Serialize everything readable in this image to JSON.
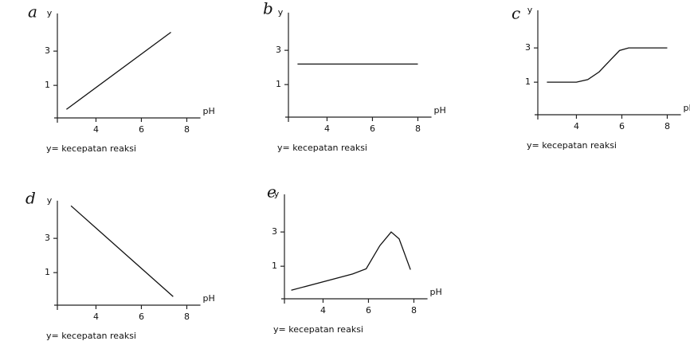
{
  "chart_data": [
    {
      "type": "line",
      "label": "a",
      "ylabel": "y",
      "xlabel": "pH",
      "caption": "y= kecepatan reaksi",
      "x": [
        2.7,
        7.3
      ],
      "values": [
        -0.4,
        4.1
      ],
      "color": "#111111",
      "xlim": [
        2.3,
        8.6
      ],
      "ylim": [
        -0.9,
        5.2
      ],
      "xticks": [
        4,
        6,
        8
      ],
      "yticks": [
        1,
        3
      ]
    },
    {
      "type": "line",
      "label": "b",
      "ylabel": "y",
      "xlabel": "pH",
      "caption": "y= kecepatan reaksi",
      "x": [
        2.7,
        8.0
      ],
      "values": [
        2.2,
        2.2
      ],
      "color": "#111111",
      "xlim": [
        2.3,
        8.6
      ],
      "ylim": [
        -0.9,
        5.2
      ],
      "xticks": [
        4,
        6,
        8
      ],
      "yticks": [
        1,
        3
      ]
    },
    {
      "type": "line",
      "label": "c",
      "ylabel": "y",
      "xlabel": "pH",
      "caption": "y= kecepatan reaksi",
      "x": [
        2.7,
        3.5,
        4,
        4.5,
        5,
        5.5,
        5.9,
        6.3,
        7,
        8
      ],
      "values": [
        1,
        1,
        1,
        1.15,
        1.6,
        2.3,
        2.85,
        3,
        3,
        3
      ],
      "color": "#111111",
      "xlim": [
        2.3,
        8.6
      ],
      "ylim": [
        -0.9,
        5.2
      ],
      "xticks": [
        4,
        6,
        8
      ],
      "yticks": [
        1,
        3
      ]
    },
    {
      "type": "line",
      "label": "d",
      "ylabel": "y",
      "xlabel": "pH",
      "caption": "y= kecepatan reaksi",
      "x": [
        2.9,
        7.4
      ],
      "values": [
        4.9,
        -0.4
      ],
      "color": "#111111",
      "xlim": [
        2.3,
        8.6
      ],
      "ylim": [
        -0.9,
        5.2
      ],
      "xticks": [
        4,
        6,
        8
      ],
      "yticks": [
        1,
        3
      ]
    },
    {
      "type": "line",
      "label": "e",
      "ylabel": "y",
      "xlabel": "pH",
      "caption": "y= kecepatan reaksi",
      "x": [
        2.6,
        5.3,
        5.9,
        6.5,
        7.0,
        7.35,
        7.85
      ],
      "values": [
        -0.4,
        0.55,
        0.85,
        2.2,
        3.0,
        2.6,
        0.8
      ],
      "color": "#111111",
      "xlim": [
        2.3,
        8.6
      ],
      "ylim": [
        -0.9,
        5.2
      ],
      "xticks": [
        4,
        6,
        8
      ],
      "yticks": [
        1,
        3
      ]
    }
  ]
}
